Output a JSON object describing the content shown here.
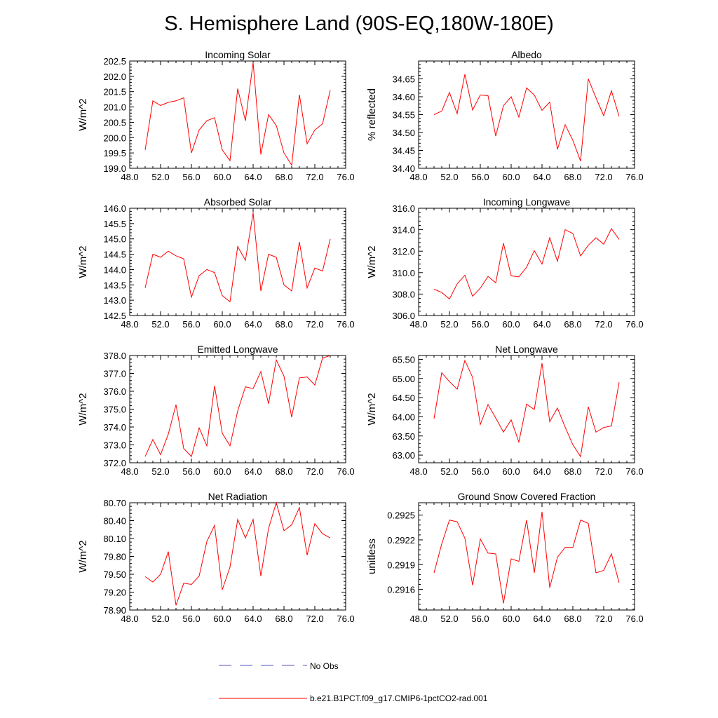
{
  "figure": {
    "title": "S. Hemisphere Land (90S-EQ,180W-180E)",
    "line_color": "#ff0000",
    "obs_color": "#5050c8"
  },
  "legend": {
    "obs_label": "No Obs",
    "model_label": "b.e21.B1PCT.f09_g17.CMIP6-1pctCO2-rad.001"
  },
  "chart_data": [
    {
      "type": "line",
      "title": "Incoming Solar",
      "xlabel": "",
      "ylabel": "W/m^2",
      "xlim": [
        48,
        76
      ],
      "ylim": [
        199.0,
        202.5
      ],
      "xticks": [
        48,
        52,
        56,
        60,
        64,
        68,
        72,
        76
      ],
      "xtick_labels": [
        "48.0",
        "52.0",
        "56.0",
        "60.0",
        "64.0",
        "68.0",
        "72.0",
        "76.0"
      ],
      "yticks": [
        199.0,
        199.5,
        200.0,
        200.5,
        201.0,
        201.5,
        202.0,
        202.5
      ],
      "ytick_labels": [
        "199.0",
        "199.5",
        "200.0",
        "200.5",
        "201.0",
        "201.5",
        "202.0",
        "202.5"
      ],
      "ydecimals": 1,
      "x": [
        50,
        51,
        52,
        53,
        54,
        55,
        56,
        57,
        58,
        59,
        60,
        61,
        62,
        63,
        64,
        65,
        66,
        67,
        68,
        69,
        70,
        71,
        72,
        73,
        74
      ],
      "series": [
        {
          "name": "b.e21.B1PCT.f09_g17.CMIP6-1pctCO2-rad.001",
          "values": [
            199.6,
            201.2,
            201.05,
            201.15,
            201.2,
            201.3,
            199.5,
            200.25,
            200.55,
            200.65,
            199.6,
            199.25,
            201.6,
            200.55,
            202.45,
            199.45,
            200.75,
            200.4,
            199.5,
            199.1,
            201.4,
            199.8,
            200.25,
            200.45,
            201.55
          ]
        }
      ]
    },
    {
      "type": "line",
      "title": "Albedo",
      "xlabel": "",
      "ylabel": "% reflected",
      "xlim": [
        48,
        76
      ],
      "ylim": [
        34.4,
        34.7
      ],
      "xticks": [
        48,
        52,
        56,
        60,
        64,
        68,
        72,
        76
      ],
      "xtick_labels": [
        "48.0",
        "52.0",
        "56.0",
        "60.0",
        "64.0",
        "68.0",
        "72.0",
        "76.0"
      ],
      "yticks": [
        34.4,
        34.45,
        34.5,
        34.55,
        34.6,
        34.65
      ],
      "ytick_labels": [
        "34.40",
        "34.45",
        "34.50",
        "34.55",
        "34.60",
        "34.65"
      ],
      "ydecimals": 2,
      "x": [
        50,
        51,
        52,
        53,
        54,
        55,
        56,
        57,
        58,
        59,
        60,
        61,
        62,
        63,
        64,
        65,
        66,
        67,
        68,
        69,
        70,
        71,
        72,
        73,
        74
      ],
      "series": [
        {
          "name": "b.e21.B1PCT.f09_g17.CMIP6-1pctCO2-rad.001",
          "values": [
            34.55,
            34.56,
            34.612,
            34.553,
            34.663,
            34.563,
            34.605,
            34.603,
            34.49,
            34.575,
            34.6,
            34.543,
            34.625,
            34.605,
            34.562,
            34.585,
            34.453,
            34.522,
            34.478,
            34.42,
            34.65,
            34.597,
            34.547,
            34.617,
            34.545
          ]
        }
      ]
    },
    {
      "type": "line",
      "title": "Absorbed Solar",
      "xlabel": "",
      "ylabel": "W/m^2",
      "xlim": [
        48,
        76
      ],
      "ylim": [
        142.5,
        146.0
      ],
      "xticks": [
        48,
        52,
        56,
        60,
        64,
        68,
        72,
        76
      ],
      "xtick_labels": [
        "48.0",
        "52.0",
        "56.0",
        "60.0",
        "64.0",
        "68.0",
        "72.0",
        "76.0"
      ],
      "yticks": [
        142.5,
        143.0,
        143.5,
        144.0,
        144.5,
        145.0,
        145.5,
        146.0
      ],
      "ytick_labels": [
        "142.5",
        "143.0",
        "143.5",
        "144.0",
        "144.5",
        "145.0",
        "145.5",
        "146.0"
      ],
      "ydecimals": 1,
      "x": [
        50,
        51,
        52,
        53,
        54,
        55,
        56,
        57,
        58,
        59,
        60,
        61,
        62,
        63,
        64,
        65,
        66,
        67,
        68,
        69,
        70,
        71,
        72,
        73,
        74
      ],
      "series": [
        {
          "name": "b.e21.B1PCT.f09_g17.CMIP6-1pctCO2-rad.001",
          "values": [
            143.4,
            144.5,
            144.4,
            144.6,
            144.45,
            144.35,
            143.1,
            143.8,
            144.0,
            143.9,
            143.15,
            142.95,
            144.75,
            144.3,
            145.85,
            143.3,
            144.5,
            144.4,
            143.5,
            143.3,
            144.9,
            143.4,
            144.05,
            143.95,
            145.0
          ]
        }
      ]
    },
    {
      "type": "line",
      "title": "Incoming Longwave",
      "xlabel": "",
      "ylabel": "W/m^2",
      "xlim": [
        48,
        76
      ],
      "ylim": [
        306.0,
        316.0
      ],
      "xticks": [
        48,
        52,
        56,
        60,
        64,
        68,
        72,
        76
      ],
      "xtick_labels": [
        "48.0",
        "52.0",
        "56.0",
        "60.0",
        "64.0",
        "68.0",
        "72.0",
        "76.0"
      ],
      "yticks": [
        306.0,
        308.0,
        310.0,
        312.0,
        314.0,
        316.0
      ],
      "ytick_labels": [
        "306.0",
        "308.0",
        "310.0",
        "312.0",
        "314.0",
        "316.0"
      ],
      "ydecimals": 1,
      "x": [
        50,
        51,
        52,
        53,
        54,
        55,
        56,
        57,
        58,
        59,
        60,
        61,
        62,
        63,
        64,
        65,
        66,
        67,
        68,
        69,
        70,
        71,
        72,
        73,
        74
      ],
      "series": [
        {
          "name": "b.e21.B1PCT.f09_g17.CMIP6-1pctCO2-rad.001",
          "values": [
            308.45,
            308.15,
            307.55,
            308.95,
            309.75,
            307.8,
            308.55,
            309.65,
            309.05,
            312.75,
            309.7,
            309.6,
            310.5,
            312.05,
            310.8,
            313.25,
            311.05,
            314.0,
            313.65,
            311.55,
            312.55,
            313.25,
            312.65,
            314.1,
            313.1
          ]
        }
      ]
    },
    {
      "type": "line",
      "title": "Emitted Longwave",
      "xlabel": "",
      "ylabel": "W/m^2",
      "xlim": [
        48,
        76
      ],
      "ylim": [
        372.0,
        378.0
      ],
      "xticks": [
        48,
        52,
        56,
        60,
        64,
        68,
        72,
        76
      ],
      "xtick_labels": [
        "48.0",
        "52.0",
        "56.0",
        "60.0",
        "64.0",
        "68.0",
        "72.0",
        "76.0"
      ],
      "yticks": [
        372.0,
        373.0,
        374.0,
        375.0,
        376.0,
        377.0,
        378.0
      ],
      "ytick_labels": [
        "372.0",
        "373.0",
        "374.0",
        "375.0",
        "376.0",
        "377.0",
        "378.0"
      ],
      "ydecimals": 1,
      "x": [
        50,
        51,
        52,
        53,
        54,
        55,
        56,
        57,
        58,
        59,
        60,
        61,
        62,
        63,
        64,
        65,
        66,
        67,
        68,
        69,
        70,
        71,
        72,
        73,
        74
      ],
      "series": [
        {
          "name": "b.e21.B1PCT.f09_g17.CMIP6-1pctCO2-rad.001",
          "values": [
            372.35,
            373.3,
            372.45,
            373.6,
            375.25,
            372.8,
            372.35,
            373.95,
            372.95,
            376.3,
            373.65,
            372.95,
            374.9,
            376.25,
            376.15,
            377.1,
            375.3,
            377.75,
            376.85,
            374.55,
            376.75,
            376.8,
            376.35,
            377.85,
            378.0
          ]
        }
      ]
    },
    {
      "type": "line",
      "title": "Net Longwave",
      "xlabel": "",
      "ylabel": "W/m^2",
      "xlim": [
        48,
        76
      ],
      "ylim": [
        62.8,
        65.6
      ],
      "xticks": [
        48,
        52,
        56,
        60,
        64,
        68,
        72,
        76
      ],
      "xtick_labels": [
        "48.0",
        "52.0",
        "56.0",
        "60.0",
        "64.0",
        "68.0",
        "72.0",
        "76.0"
      ],
      "yticks": [
        63.0,
        63.5,
        64.0,
        64.5,
        65.0,
        65.5
      ],
      "ytick_labels": [
        "63.00",
        "63.50",
        "64.00",
        "64.50",
        "65.00",
        "65.50"
      ],
      "ydecimals": 2,
      "x": [
        50,
        51,
        52,
        53,
        54,
        55,
        56,
        57,
        58,
        59,
        60,
        61,
        62,
        63,
        64,
        65,
        66,
        67,
        68,
        69,
        70,
        71,
        72,
        73,
        74
      ],
      "series": [
        {
          "name": "b.e21.B1PCT.f09_g17.CMIP6-1pctCO2-rad.001",
          "values": [
            63.95,
            65.15,
            64.92,
            64.72,
            65.47,
            65.03,
            63.8,
            64.32,
            63.97,
            63.6,
            63.92,
            63.34,
            64.33,
            64.19,
            65.4,
            63.87,
            64.23,
            63.73,
            63.27,
            62.96,
            64.26,
            63.6,
            63.72,
            63.76,
            64.9
          ]
        }
      ]
    },
    {
      "type": "line",
      "title": "Net Radiation",
      "xlabel": "",
      "ylabel": "W/m^2",
      "xlim": [
        48,
        76
      ],
      "ylim": [
        78.9,
        80.7
      ],
      "xticks": [
        48,
        52,
        56,
        60,
        64,
        68,
        72,
        76
      ],
      "xtick_labels": [
        "48.0",
        "52.0",
        "56.0",
        "60.0",
        "64.0",
        "68.0",
        "72.0",
        "76.0"
      ],
      "yticks": [
        78.9,
        79.2,
        79.5,
        79.8,
        80.1,
        80.4,
        80.7
      ],
      "ytick_labels": [
        "78.90",
        "79.20",
        "79.50",
        "79.80",
        "80.10",
        "80.40",
        "80.70"
      ],
      "ydecimals": 2,
      "x": [
        50,
        51,
        52,
        53,
        54,
        55,
        56,
        57,
        58,
        59,
        60,
        61,
        62,
        63,
        64,
        65,
        66,
        67,
        68,
        69,
        70,
        71,
        72,
        73,
        74
      ],
      "series": [
        {
          "name": "b.e21.B1PCT.f09_g17.CMIP6-1pctCO2-rad.001",
          "values": [
            79.46,
            79.37,
            79.5,
            79.88,
            78.98,
            79.35,
            79.33,
            79.47,
            80.05,
            80.32,
            79.24,
            79.62,
            80.42,
            80.11,
            80.42,
            79.47,
            80.27,
            80.7,
            80.23,
            80.33,
            80.62,
            79.82,
            80.35,
            80.18,
            80.11
          ]
        }
      ]
    },
    {
      "type": "line",
      "title": "Ground Snow Covered Fraction",
      "xlabel": "",
      "ylabel": "unitless",
      "xlim": [
        48,
        76
      ],
      "ylim": [
        0.29135,
        0.29265
      ],
      "xticks": [
        48,
        52,
        56,
        60,
        64,
        68,
        72,
        76
      ],
      "xtick_labels": [
        "48.0",
        "52.0",
        "56.0",
        "60.0",
        "64.0",
        "68.0",
        "72.0",
        "76.0"
      ],
      "yticks": [
        0.2916,
        0.2919,
        0.2922,
        0.2925
      ],
      "ytick_labels": [
        "0.2916",
        "0.2919",
        "0.2922",
        "0.2925"
      ],
      "ydecimals": 4,
      "x": [
        50,
        51,
        52,
        53,
        54,
        55,
        56,
        57,
        58,
        59,
        60,
        61,
        62,
        63,
        64,
        65,
        66,
        67,
        68,
        69,
        70,
        71,
        72,
        73,
        74
      ],
      "series": [
        {
          "name": "b.e21.B1PCT.f09_g17.CMIP6-1pctCO2-rad.001",
          "values": [
            0.2918,
            0.29215,
            0.29244,
            0.29242,
            0.29222,
            0.29165,
            0.29221,
            0.29204,
            0.29203,
            0.29143,
            0.29197,
            0.29194,
            0.29244,
            0.2918,
            0.29254,
            0.29162,
            0.29199,
            0.29211,
            0.29211,
            0.29244,
            0.2924,
            0.2918,
            0.29183,
            0.29203,
            0.29168
          ]
        }
      ]
    }
  ]
}
